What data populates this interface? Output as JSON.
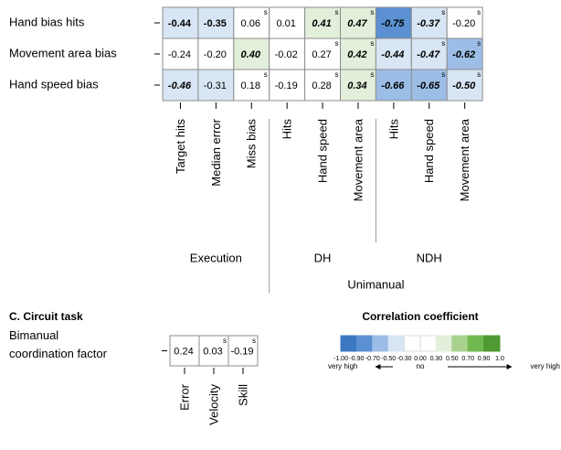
{
  "chart_data": [
    {
      "type": "heatmap",
      "rows": [
        "Hand bias hits",
        "Movement area bias",
        "Hand speed bias"
      ],
      "groups": [
        {
          "name": "Execution",
          "columns": [
            "Target hits",
            "Median error",
            "Miss bias"
          ]
        },
        {
          "name": "Unimanual",
          "groups": [
            {
              "name": "DH",
              "columns": [
                "Hits",
                "Hand speed",
                "Movement area"
              ]
            },
            {
              "name": "NDH",
              "columns": [
                "Hits",
                "Hand speed",
                "Movement area"
              ]
            }
          ]
        }
      ],
      "values": [
        [
          -0.44,
          -0.35,
          0.06,
          0.01,
          0.41,
          0.47,
          -0.75,
          -0.37,
          -0.2
        ],
        [
          -0.24,
          -0.2,
          0.4,
          -0.02,
          0.27,
          0.42,
          -0.44,
          -0.47,
          -0.62
        ],
        [
          -0.46,
          -0.31,
          0.18,
          -0.19,
          0.28,
          0.34,
          -0.66,
          -0.65,
          -0.5
        ]
      ],
      "value_labels": [
        [
          "-0.44",
          "-0.35",
          "0.06",
          "0.01",
          "0.41",
          "0.47",
          "-0.75",
          "-0.37",
          "-0.20"
        ],
        [
          "-0.24",
          "-0.20",
          "0.40",
          "-0.02",
          "0.27",
          "0.42",
          "-0.44",
          "-0.47",
          "-0.62"
        ],
        [
          "-0.46",
          "-0.31",
          "0.18",
          "-0.19",
          "0.28",
          "0.34",
          "-0.66",
          "-0.65",
          "-0.50"
        ]
      ],
      "significance": [
        [
          null,
          null,
          "s",
          null,
          "s",
          "s",
          null,
          "s",
          "s"
        ],
        [
          null,
          null,
          null,
          null,
          "s",
          "s",
          null,
          "s",
          "s"
        ],
        [
          null,
          null,
          "s",
          null,
          "s",
          "s",
          null,
          "s",
          "s"
        ]
      ],
      "emphasis": [
        [
          "bold",
          "bold",
          null,
          null,
          "bold-italic",
          "bold-italic",
          "bold-italic",
          "bold-italic",
          null
        ],
        [
          null,
          null,
          "bold-italic",
          null,
          null,
          "bold-italic",
          "bold-italic",
          "bold-italic",
          "bold-italic"
        ],
        [
          "bold-italic",
          null,
          null,
          null,
          null,
          "bold-italic",
          "bold-italic",
          "bold-italic",
          "bold-italic"
        ]
      ]
    },
    {
      "type": "heatmap",
      "title": "C. Circuit task",
      "rows": [
        [
          "Bimanual",
          "coordination factor"
        ]
      ],
      "groups": [
        {
          "columns": [
            "Error",
            "Velocity",
            "Skill"
          ]
        }
      ],
      "values": [
        [
          0.24,
          0.03,
          -0.19
        ]
      ],
      "value_labels": [
        [
          "0.24",
          "0.03",
          "-0.19"
        ]
      ],
      "significance": [
        [
          null,
          "s",
          "s"
        ]
      ],
      "emphasis": [
        [
          null,
          null,
          null
        ]
      ]
    }
  ],
  "colorbar": {
    "title": "Correlation coefficient",
    "bounds": [
      {
        "value": -1,
        "label": "-1.00"
      },
      {
        "value": -0.9,
        "label": "-0.90"
      },
      {
        "value": -0.7,
        "label": "-0.70"
      },
      {
        "value": -0.5,
        "label": "-0.50"
      },
      {
        "value": -0.3,
        "label": "-0.30"
      },
      {
        "value": 0,
        "label": "0.00"
      },
      {
        "value": 0.3,
        "label": "0.30"
      },
      {
        "value": 0.5,
        "label": "0.50"
      },
      {
        "value": 0.7,
        "label": "0.70"
      },
      {
        "value": 0.9,
        "label": "0.90"
      },
      {
        "value": 1,
        "label": "1.0"
      }
    ],
    "colors": [
      "#3b78c1",
      "#5b90d2",
      "#9cbde6",
      "#d8e5f4",
      "#ffffff",
      "#ffffff",
      "#e2efda",
      "#a9d18e",
      "#71b84e",
      "#4f9a33"
    ],
    "left_label": "very high",
    "center_label": "no",
    "right_label": "very high"
  }
}
